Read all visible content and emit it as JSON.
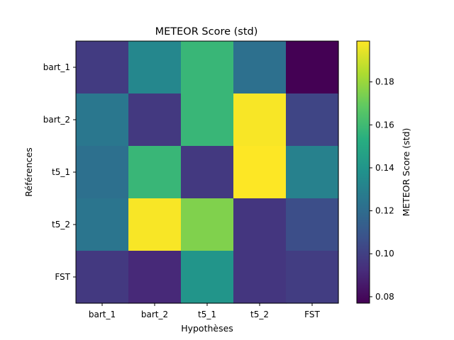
{
  "chart_data": {
    "type": "heatmap",
    "title": "METEOR Score (std)",
    "xlabel": "Hypothèses",
    "ylabel": "Références",
    "x_categories": [
      "bart_1",
      "bart_2",
      "t5_1",
      "t5_2",
      "FST"
    ],
    "y_categories": [
      "bart_1",
      "bart_2",
      "t5_1",
      "t5_2",
      "FST"
    ],
    "values": [
      [
        0.098,
        0.133,
        0.158,
        0.122,
        0.077
      ],
      [
        0.125,
        0.097,
        0.158,
        0.198,
        0.102
      ],
      [
        0.122,
        0.158,
        0.097,
        0.199,
        0.13
      ],
      [
        0.124,
        0.198,
        0.175,
        0.096,
        0.106
      ],
      [
        0.097,
        0.091,
        0.14,
        0.096,
        0.099
      ]
    ],
    "vmin": 0.077,
    "vmax": 0.199,
    "colormap": "viridis",
    "colorbar": {
      "label": "METEOR Score (std)",
      "ticks": [
        0.08,
        0.1,
        0.12,
        0.14,
        0.16,
        0.18
      ],
      "tick_labels": [
        "0.08",
        "0.10",
        "0.12",
        "0.14",
        "0.16",
        "0.18"
      ]
    }
  }
}
